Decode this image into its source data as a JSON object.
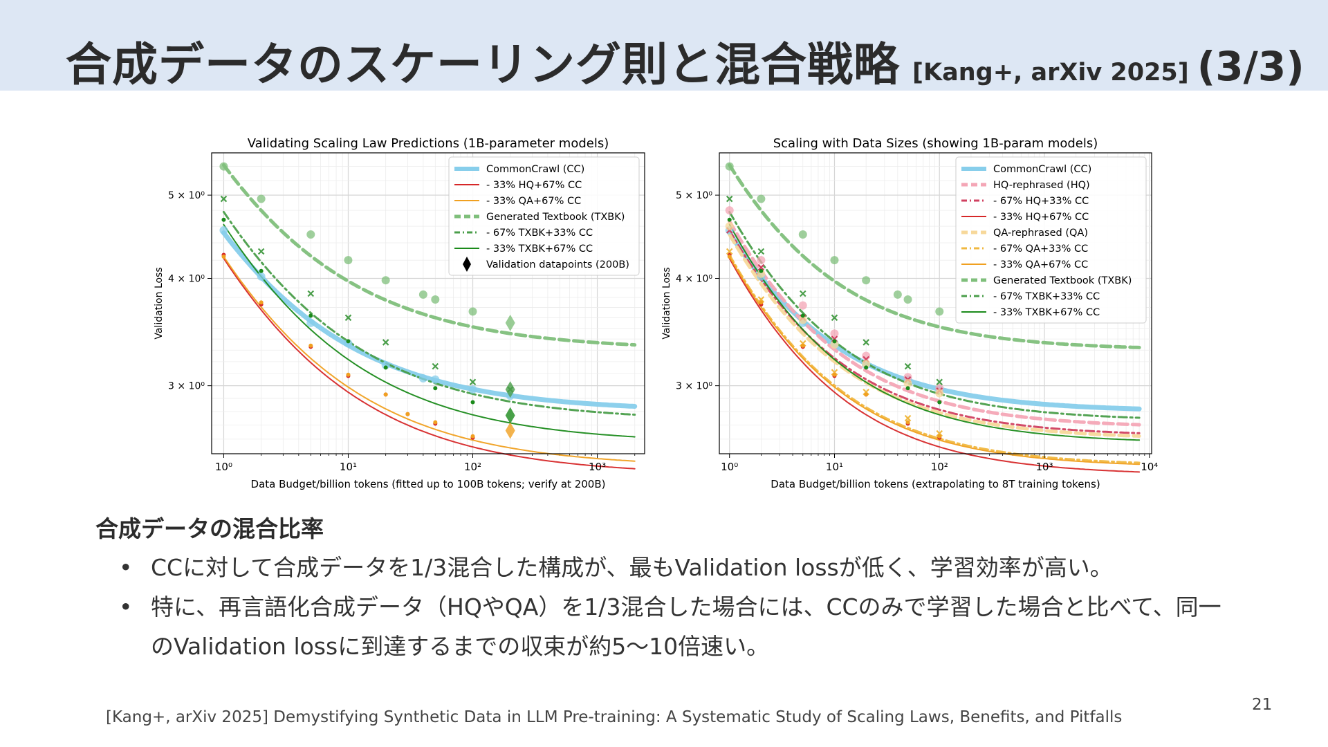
{
  "slide": {
    "title": "合成データのスケーリング則と混合戦略",
    "title_ref": "[Kang+, arXiv 2025]",
    "title_page": "(3/3)",
    "section_heading": "合成データの混合比率",
    "bullets": [
      "CCに対して合成データを1/3混合した構成が、最もValidation lossが低く、学習効率が高い。",
      "特に、再言語化合成データ（HQやQA）を1/3混合した場合には、CCのみで学習した場合と比べて、同一のValidation lossに到達するまでの収束が約5〜10倍速い。"
    ],
    "citation": "[Kang+, arXiv 2025] Demystifying Synthetic Data in LLM Pre-training: A Systematic Study of Scaling Laws, Benefits, and Pitfalls",
    "page_number": "21"
  },
  "chart_data": [
    {
      "type": "line",
      "title": "Validating Scaling Law Predictions (1B-parameter models)",
      "xlabel": "Data Budget/billion tokens (fitted up to 100B tokens; verify at 200B)",
      "ylabel": "Validation Loss",
      "xscale": "log",
      "yscale": "log",
      "xlim": [
        0.8,
        2400
      ],
      "ylim": [
        2.5,
        5.6
      ],
      "xticks": [
        1,
        10,
        100,
        1000
      ],
      "xtick_labels": [
        "10⁰",
        "10¹",
        "10²",
        "10³"
      ],
      "yticks": [
        3,
        4,
        5
      ],
      "ytick_labels": [
        "3 × 10⁰",
        "4 × 10⁰",
        "5 × 10⁰"
      ],
      "grid": true,
      "legend_position": "upper-right",
      "fit_x_max": 2000,
      "series": [
        {
          "name": "CommonCrawl (CC)",
          "color": "#87ceeb",
          "style": "solid",
          "width": 7,
          "fit": {
            "a": 1.72,
            "alpha": 0.5,
            "e": 2.8
          },
          "points": [
            [
              1,
              4.55
            ],
            [
              2,
              4.02
            ],
            [
              5,
              3.55
            ],
            [
              10,
              3.36
            ],
            [
              20,
              3.17
            ],
            [
              40,
              3.06
            ],
            [
              50,
              3.05
            ],
            [
              100,
              2.97
            ],
            [
              200,
              2.92
            ]
          ],
          "marker": "circle"
        },
        {
          "name": "- 33% HQ+67% CC",
          "color": "#d62728",
          "style": "solid",
          "width": 2,
          "fit": {
            "a": 1.86,
            "alpha": 0.5,
            "e": 2.36
          },
          "points": [
            [
              1,
              4.26
            ],
            [
              2,
              3.73
            ],
            [
              5,
              3.33
            ],
            [
              10,
              3.08
            ],
            [
              20,
              2.93
            ],
            [
              30,
              2.78
            ],
            [
              50,
              2.71
            ],
            [
              100,
              2.61
            ]
          ],
          "marker": "dot"
        },
        {
          "name": "- 33% QA+67% CC",
          "color": "#f0a020",
          "style": "solid",
          "width": 2,
          "fit": {
            "a": 1.83,
            "alpha": 0.5,
            "e": 2.41
          },
          "points": [
            [
              1,
              4.24
            ],
            [
              2,
              3.75
            ],
            [
              5,
              3.34
            ],
            [
              10,
              3.09
            ],
            [
              20,
              2.93
            ],
            [
              30,
              2.78
            ],
            [
              50,
              2.72
            ],
            [
              100,
              2.62
            ]
          ],
          "marker": "dot"
        },
        {
          "name": "Generated Textbook (TXBK)",
          "color": "#7fbf7b",
          "style": "dashed",
          "width": 5,
          "fit": {
            "a": 2.12,
            "alpha": 0.5,
            "e": 3.3
          },
          "points": [
            [
              1,
              5.4
            ],
            [
              2,
              4.95
            ],
            [
              5,
              4.5
            ],
            [
              10,
              4.2
            ],
            [
              20,
              3.98
            ],
            [
              40,
              3.83
            ],
            [
              50,
              3.78
            ],
            [
              100,
              3.66
            ]
          ],
          "marker": "circle"
        },
        {
          "name": "- 67% TXBK+33% CC",
          "color": "#4a9e4a",
          "style": "dashdot",
          "width": 3,
          "fit": {
            "a": 2.05,
            "alpha": 0.5,
            "e": 2.73
          },
          "points": [
            [
              1,
              4.95
            ],
            [
              2,
              4.3
            ],
            [
              5,
              3.84
            ],
            [
              10,
              3.6
            ],
            [
              20,
              3.37
            ],
            [
              50,
              3.16
            ],
            [
              100,
              3.03
            ],
            [
              200,
              2.97
            ]
          ],
          "marker": "x"
        },
        {
          "name": "- 33% TXBK+67% CC",
          "color": "#1a8a1a",
          "style": "solid",
          "width": 2,
          "fit": {
            "a": 2.05,
            "alpha": 0.5,
            "e": 2.57
          },
          "points": [
            [
              1,
              4.68
            ],
            [
              2,
              4.08
            ],
            [
              5,
              3.62
            ],
            [
              10,
              3.38
            ],
            [
              20,
              3.15
            ],
            [
              50,
              2.98
            ],
            [
              100,
              2.87
            ]
          ],
          "marker": "dot"
        },
        {
          "name": "Validation datapoints (200B)",
          "color": "#000000",
          "style": "none",
          "marker": "diamond",
          "points": [
            [
              200,
              3.55
            ],
            [
              200,
              2.97
            ],
            [
              200,
              2.77
            ],
            [
              200,
              2.66
            ]
          ],
          "point_colors": [
            "#7fbf7b",
            "#4a9e4a",
            "#1a8a1a",
            "#f0a020"
          ]
        }
      ]
    },
    {
      "type": "line",
      "title": "Scaling with Data Sizes (showing 1B-param models)",
      "xlabel": "Data Budget/billion tokens (extrapolating to 8T training tokens)",
      "ylabel": "Validation Loss",
      "xscale": "log",
      "yscale": "log",
      "xlim": [
        0.8,
        10500
      ],
      "ylim": [
        2.5,
        5.6
      ],
      "xticks": [
        1,
        10,
        100,
        1000,
        10000
      ],
      "xtick_labels": [
        "10⁰",
        "10¹",
        "10²",
        "10³",
        "10⁴"
      ],
      "yticks": [
        3,
        4,
        5
      ],
      "ytick_labels": [
        "3 × 10⁰",
        "4 × 10⁰",
        "5 × 10⁰"
      ],
      "grid": true,
      "legend_position": "upper-right",
      "fit_x_max": 8000,
      "series": [
        {
          "name": "CommonCrawl (CC)",
          "color": "#87ceeb",
          "style": "solid",
          "width": 7,
          "fit": {
            "a": 1.72,
            "alpha": 0.5,
            "e": 2.8
          },
          "points": [
            [
              1,
              4.55
            ],
            [
              2,
              4.02
            ],
            [
              5,
              3.55
            ],
            [
              10,
              3.36
            ],
            [
              20,
              3.17
            ],
            [
              50,
              3.05
            ],
            [
              100,
              2.97
            ]
          ],
          "marker": "circle"
        },
        {
          "name": "HQ-rephrased (HQ)",
          "color": "#f4a6b6",
          "style": "dashed",
          "width": 5,
          "fit": {
            "a": 1.98,
            "alpha": 0.5,
            "e": 2.68
          },
          "points": [
            [
              1,
              4.8
            ],
            [
              2,
              4.2
            ],
            [
              5,
              3.72
            ],
            [
              10,
              3.45
            ],
            [
              20,
              3.25
            ],
            [
              50,
              3.07
            ],
            [
              100,
              2.98
            ]
          ],
          "marker": "circle"
        },
        {
          "name": "- 67% HQ+33% CC",
          "color": "#d04060",
          "style": "dashdot",
          "width": 3,
          "fit": {
            "a": 1.93,
            "alpha": 0.5,
            "e": 2.62
          },
          "points": [
            [
              1,
              4.55
            ],
            [
              2,
              4.12
            ],
            [
              5,
              3.6
            ],
            [
              10,
              3.4
            ],
            [
              20,
              3.22
            ],
            [
              50,
              3.05
            ],
            [
              100,
              2.96
            ]
          ],
          "marker": "x"
        },
        {
          "name": "- 33% HQ+67% CC",
          "color": "#d62728",
          "style": "solid",
          "width": 2,
          "fit": {
            "a": 1.86,
            "alpha": 0.5,
            "e": 2.36
          },
          "points": [
            [
              1,
              4.26
            ],
            [
              2,
              3.73
            ],
            [
              5,
              3.33
            ],
            [
              10,
              3.08
            ],
            [
              20,
              2.93
            ],
            [
              50,
              2.71
            ],
            [
              100,
              2.61
            ]
          ],
          "marker": "dot"
        },
        {
          "name": "QA-rephrased (QA)",
          "color": "#f7d89a",
          "style": "dashed",
          "width": 5,
          "fit": {
            "a": 1.9,
            "alpha": 0.5,
            "e": 2.6
          },
          "points": [
            [
              1,
              4.6
            ],
            [
              2,
              4.05
            ],
            [
              5,
              3.58
            ],
            [
              10,
              3.35
            ],
            [
              20,
              3.18
            ],
            [
              50,
              3.02
            ],
            [
              100,
              2.94
            ]
          ],
          "marker": "circle"
        },
        {
          "name": "- 67% QA+33% CC",
          "color": "#f0b840",
          "style": "dashdot",
          "width": 3,
          "fit": {
            "a": 1.84,
            "alpha": 0.5,
            "e": 2.42
          },
          "points": [
            [
              1,
              4.3
            ],
            [
              2,
              3.78
            ],
            [
              5,
              3.36
            ],
            [
              10,
              3.11
            ],
            [
              20,
              2.95
            ],
            [
              50,
              2.75
            ],
            [
              100,
              2.64
            ]
          ],
          "marker": "x"
        },
        {
          "name": "- 33% QA+67% CC",
          "color": "#f0a020",
          "style": "solid",
          "width": 2,
          "fit": {
            "a": 1.83,
            "alpha": 0.5,
            "e": 2.41
          },
          "points": [
            [
              1,
              4.24
            ],
            [
              2,
              3.75
            ],
            [
              5,
              3.34
            ],
            [
              10,
              3.09
            ],
            [
              20,
              2.93
            ],
            [
              50,
              2.72
            ],
            [
              100,
              2.62
            ]
          ],
          "marker": "dot"
        },
        {
          "name": "Generated Textbook (TXBK)",
          "color": "#7fbf7b",
          "style": "dashed",
          "width": 5,
          "fit": {
            "a": 2.12,
            "alpha": 0.5,
            "e": 3.3
          },
          "points": [
            [
              1,
              5.4
            ],
            [
              2,
              4.95
            ],
            [
              5,
              4.5
            ],
            [
              10,
              4.2
            ],
            [
              20,
              3.98
            ],
            [
              40,
              3.83
            ],
            [
              50,
              3.78
            ],
            [
              100,
              3.66
            ]
          ],
          "marker": "circle"
        },
        {
          "name": "- 67% TXBK+33% CC",
          "color": "#4a9e4a",
          "style": "dashdot",
          "width": 3,
          "fit": {
            "a": 2.05,
            "alpha": 0.5,
            "e": 2.73
          },
          "points": [
            [
              1,
              4.95
            ],
            [
              2,
              4.3
            ],
            [
              5,
              3.84
            ],
            [
              10,
              3.6
            ],
            [
              20,
              3.37
            ],
            [
              50,
              3.16
            ],
            [
              100,
              3.03
            ]
          ],
          "marker": "x"
        },
        {
          "name": "- 33% TXBK+67% CC",
          "color": "#1a8a1a",
          "style": "solid",
          "width": 2,
          "fit": {
            "a": 2.05,
            "alpha": 0.5,
            "e": 2.57
          },
          "points": [
            [
              1,
              4.68
            ],
            [
              2,
              4.08
            ],
            [
              5,
              3.62
            ],
            [
              10,
              3.38
            ],
            [
              20,
              3.15
            ],
            [
              50,
              2.98
            ],
            [
              100,
              2.87
            ]
          ],
          "marker": "dot"
        }
      ]
    }
  ]
}
